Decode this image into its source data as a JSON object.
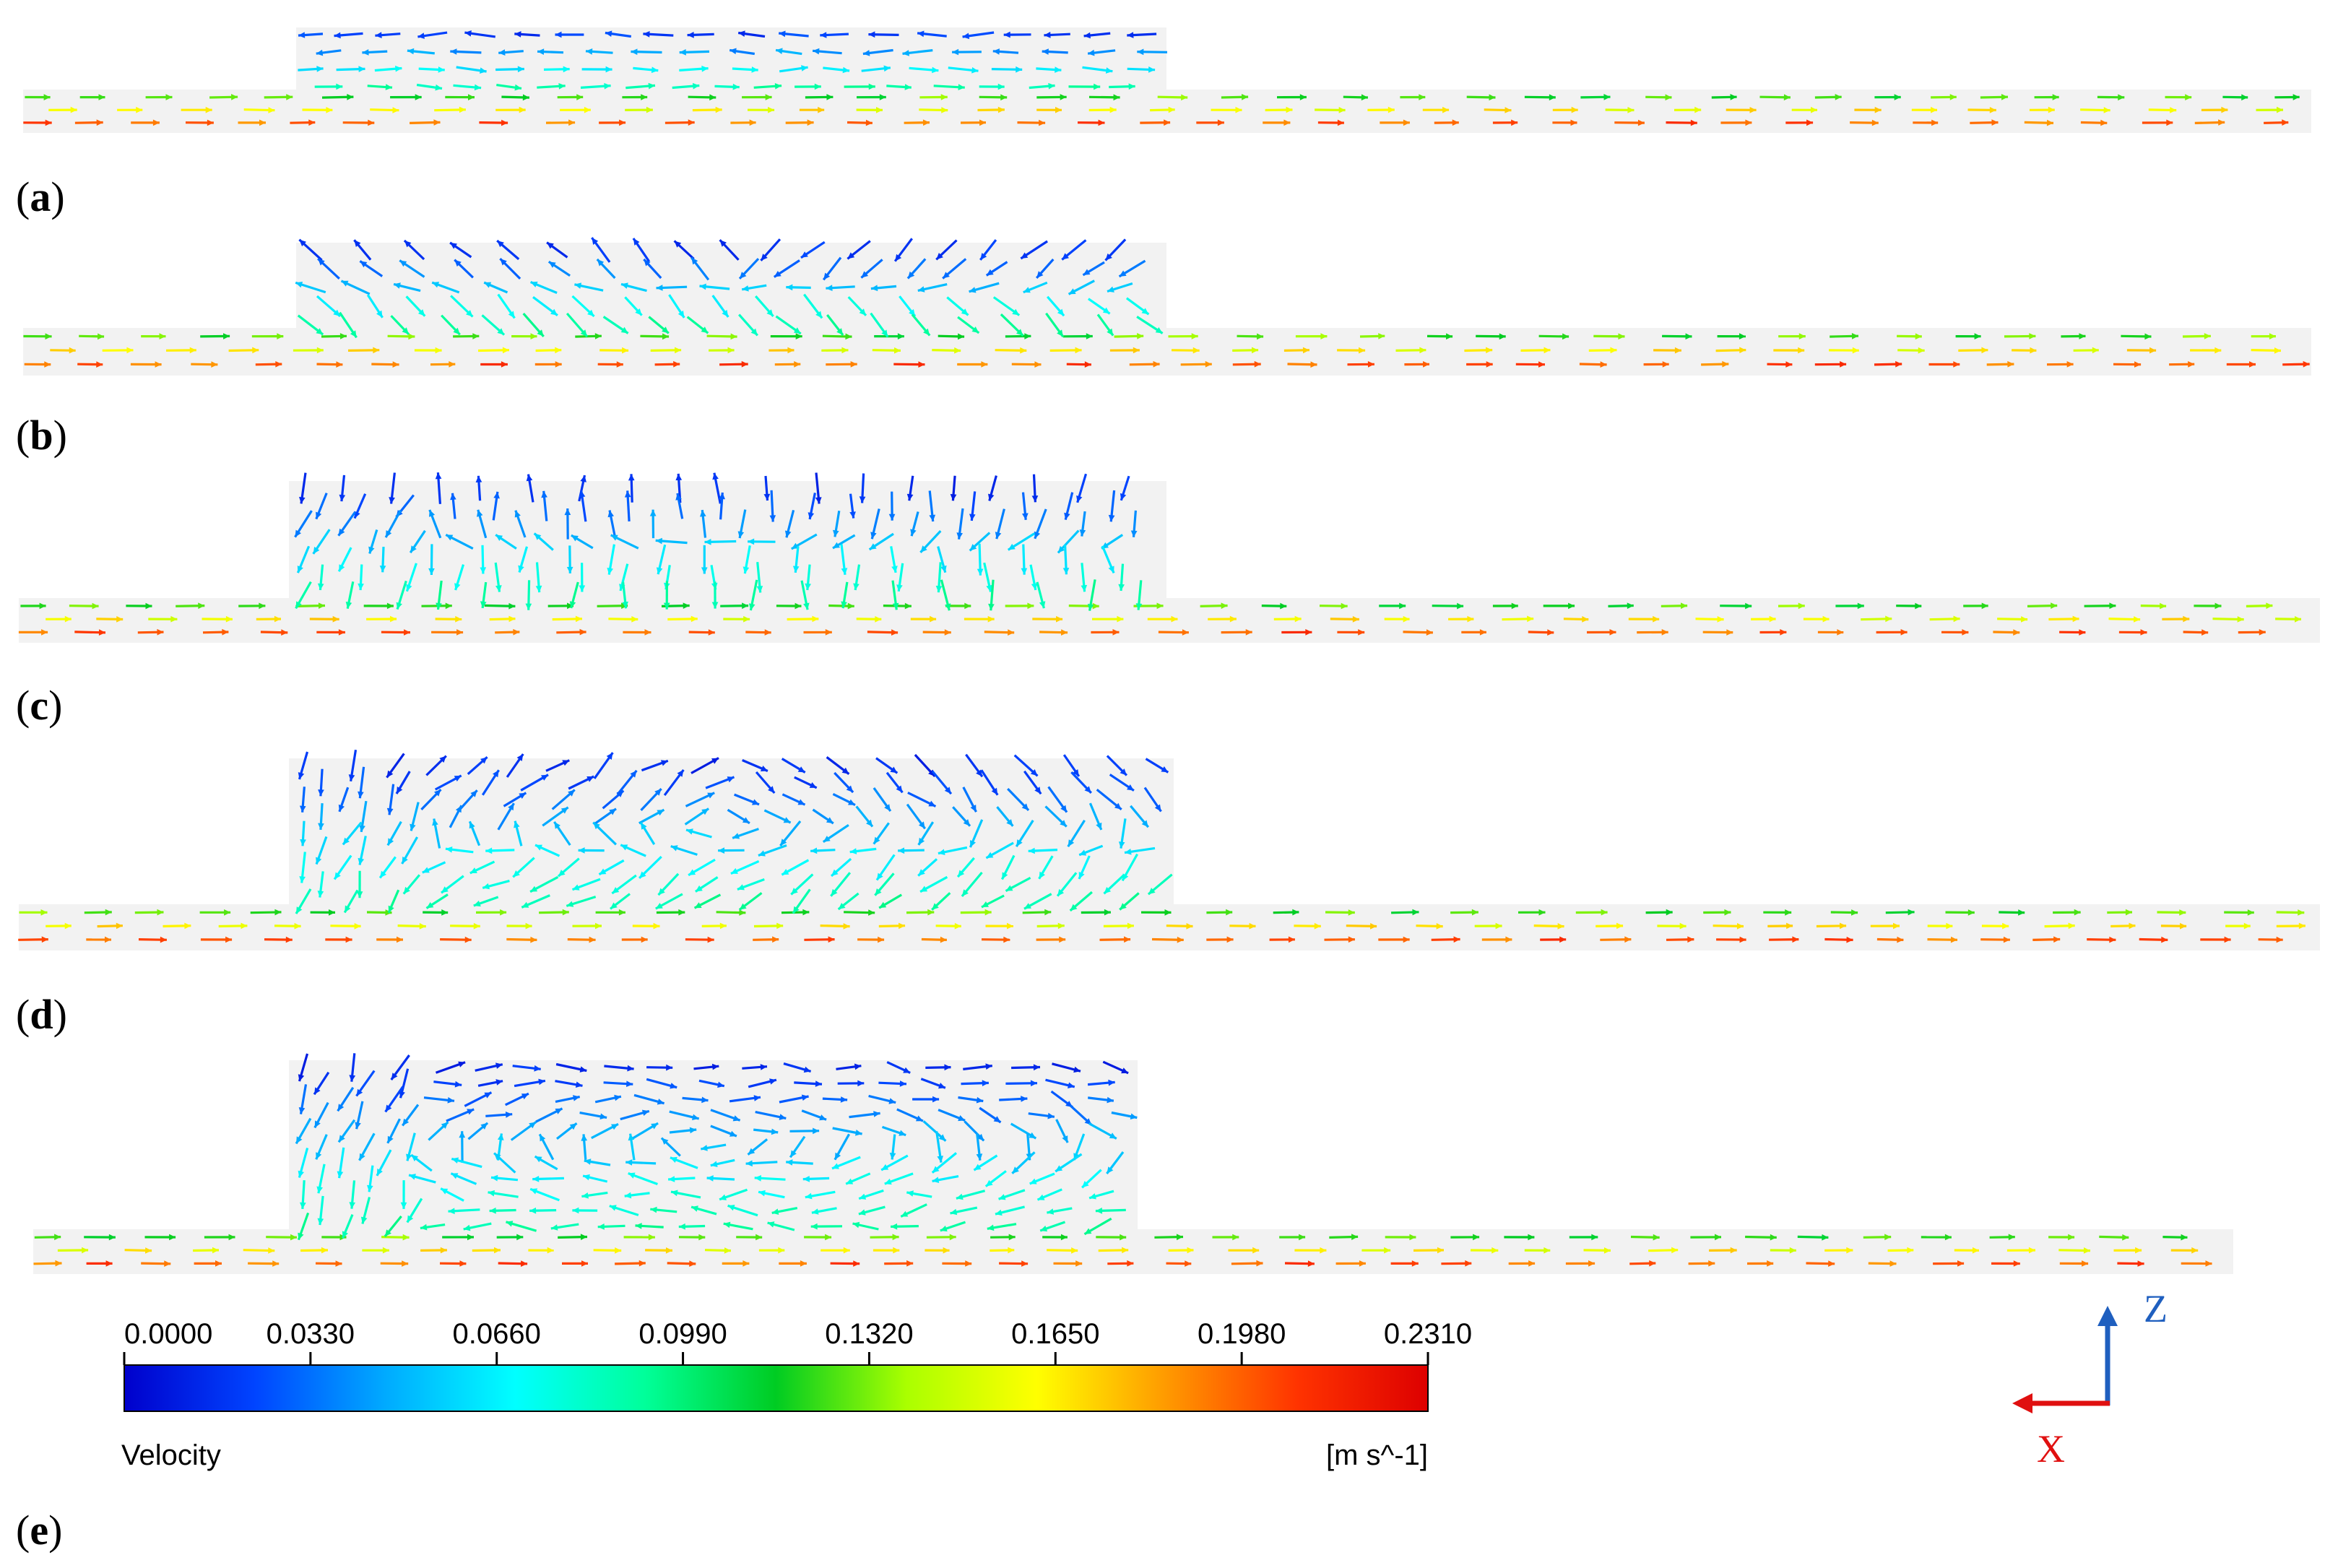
{
  "panels": [
    {
      "open": "(",
      "letter": "a",
      "close": ")"
    },
    {
      "open": "(",
      "letter": "b",
      "close": ")"
    },
    {
      "open": "(",
      "letter": "c",
      "close": ")"
    },
    {
      "open": "(",
      "letter": "d",
      "close": ")"
    },
    {
      "open": "(",
      "letter": "e",
      "close": ")"
    }
  ],
  "colorbar": {
    "title": "Velocity",
    "unit": "[m s^-1]",
    "ticks": [
      "0.0000",
      "0.0330",
      "0.0660",
      "0.0990",
      "0.1320",
      "0.1650",
      "0.1980",
      "0.2310"
    ],
    "min": 0.0,
    "max": 0.231,
    "colormap": [
      "#0000cc",
      "#0044ff",
      "#00aaff",
      "#00ffff",
      "#00ff99",
      "#00cc22",
      "#aaff00",
      "#ffff00",
      "#ff9900",
      "#ff3300",
      "#dd0000"
    ]
  },
  "axes": {
    "z_label": "Z",
    "x_label": "X",
    "z_color": "#1f5fbf",
    "x_color": "#e01010"
  },
  "domain_fill": "#f2f2f2"
}
